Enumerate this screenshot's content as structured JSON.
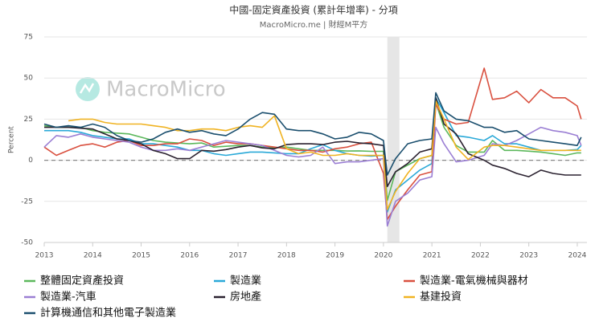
{
  "chart_data": {
    "type": "line",
    "title": "中國-固定資產投資 (累計年增率) - 分項",
    "subtitle": "MacroMicro.me | 財經M平方",
    "watermark": "MacroMicro",
    "ylabel": "Percent",
    "xlim": [
      2013,
      2024.2
    ],
    "xticks": [
      2013,
      2014,
      2015,
      2016,
      2017,
      2018,
      2019,
      2020,
      2021,
      2022,
      2023,
      2024
    ],
    "ylim": [
      -50,
      75
    ],
    "yticks": [
      -50,
      -25,
      0,
      25,
      50,
      75
    ],
    "grid": true,
    "highlight_band": [
      2020.08,
      2020.33
    ],
    "x": [
      2013.0,
      2013.25,
      2013.5,
      2013.75,
      2014.0,
      2014.25,
      2014.5,
      2014.75,
      2015.0,
      2015.25,
      2015.5,
      2015.75,
      2016.0,
      2016.25,
      2016.5,
      2016.75,
      2017.0,
      2017.25,
      2017.5,
      2017.75,
      2018.0,
      2018.25,
      2018.5,
      2018.75,
      2019.0,
      2019.25,
      2019.5,
      2019.75,
      2020.0,
      2020.08,
      2020.25,
      2020.5,
      2020.75,
      2021.0,
      2021.08,
      2021.25,
      2021.5,
      2021.75,
      2022.08,
      2022.25,
      2022.5,
      2022.75,
      2023.0,
      2023.25,
      2023.5,
      2023.75,
      2024.0,
      2024.08
    ],
    "series": [
      {
        "name": "整體固定資產投資",
        "color": "#5cb85c",
        "values": [
          21,
          20,
          20,
          20,
          18,
          17,
          16.5,
          16,
          14,
          12,
          11,
          10.5,
          10,
          10.5,
          8,
          8.5,
          9,
          9,
          8,
          7.5,
          8,
          7,
          6,
          6,
          6,
          5.6,
          5.7,
          5.4,
          5.4,
          -24.5,
          -7,
          -3,
          1,
          2.9,
          35,
          20,
          9,
          5,
          5,
          12,
          6,
          6,
          5.5,
          5,
          4,
          3,
          4.5,
          4.5
        ]
      },
      {
        "name": "製造業",
        "color": "#2aa9d8",
        "values": [
          18,
          18,
          18,
          17,
          15,
          14,
          13,
          13,
          10,
          10,
          9,
          8,
          6,
          6,
          4,
          3,
          4,
          5,
          5,
          4.5,
          4,
          4,
          7,
          9.5,
          6,
          4,
          3,
          2.5,
          3,
          -31.5,
          -18,
          -12,
          -6,
          -2,
          38,
          29,
          15,
          14,
          12,
          15,
          10,
          10,
          8,
          6,
          6,
          6,
          6.5,
          9
        ]
      },
      {
        "name": "製造業-電氣機械與器材",
        "color": "#d9503f",
        "values": [
          8,
          3,
          6,
          9,
          10,
          8,
          11,
          12,
          9,
          9,
          10,
          10,
          13,
          12,
          9,
          11,
          10,
          10,
          9,
          8,
          7,
          6,
          6,
          5,
          7,
          8,
          10,
          11,
          -8,
          -36,
          -28,
          -18,
          -9,
          -7,
          34,
          25,
          22,
          23,
          56,
          37,
          38,
          42,
          35,
          43,
          38,
          38,
          33,
          25
        ]
      },
      {
        "name": "製造業-汽車",
        "color": "#9b7fd4",
        "values": [
          8,
          15,
          14,
          16,
          14,
          13,
          12,
          11,
          8,
          6,
          6,
          7,
          6,
          8,
          10,
          12,
          11,
          10,
          9,
          6,
          3,
          2,
          3,
          8,
          -2,
          -1,
          -1,
          0,
          1,
          -40,
          -25,
          -20,
          -12,
          -10,
          20,
          10,
          -1,
          0,
          3,
          10,
          9,
          12,
          16,
          20,
          18,
          17,
          15,
          9
        ]
      },
      {
        "name": "房地產",
        "color": "#2b2230",
        "values": [
          20,
          20,
          20,
          19.5,
          19,
          16,
          13,
          12,
          10,
          6,
          4,
          1,
          1,
          6,
          5.5,
          6.5,
          8,
          9,
          7.5,
          7,
          9.5,
          10,
          10,
          9.5,
          11,
          11.5,
          10.5,
          10,
          9,
          -16,
          -7,
          -2,
          5,
          7,
          38,
          22,
          16,
          4,
          0,
          -3,
          -5,
          -8,
          -10,
          -6,
          -8,
          -9,
          -9,
          -9
        ]
      },
      {
        "name": "基建投資",
        "color": "#f0b322",
        "values": [
          null,
          null,
          24,
          25,
          25,
          23,
          22,
          22,
          22,
          21,
          20,
          18,
          18,
          19,
          19,
          18,
          20,
          21,
          20,
          27,
          7,
          4,
          5,
          3,
          3,
          4,
          3,
          3,
          3,
          -30,
          -19,
          -8,
          1,
          3,
          36,
          25,
          8,
          0.5,
          8,
          9,
          9,
          8,
          7,
          6,
          6,
          6,
          6,
          6
        ]
      },
      {
        "name": "計算機通信和其他電子製造業",
        "color": "#1b4f6e",
        "values": [
          22,
          20,
          21,
          20,
          22,
          20,
          15,
          12,
          11,
          13,
          17,
          19,
          17,
          18,
          16,
          15,
          19,
          25,
          29,
          28,
          19,
          18,
          18,
          16,
          13,
          14,
          17,
          16,
          12,
          -9,
          1,
          10,
          12,
          13,
          41,
          30,
          25,
          24,
          20,
          20,
          17,
          18,
          13,
          12,
          11,
          10,
          9,
          14
        ]
      }
    ]
  }
}
